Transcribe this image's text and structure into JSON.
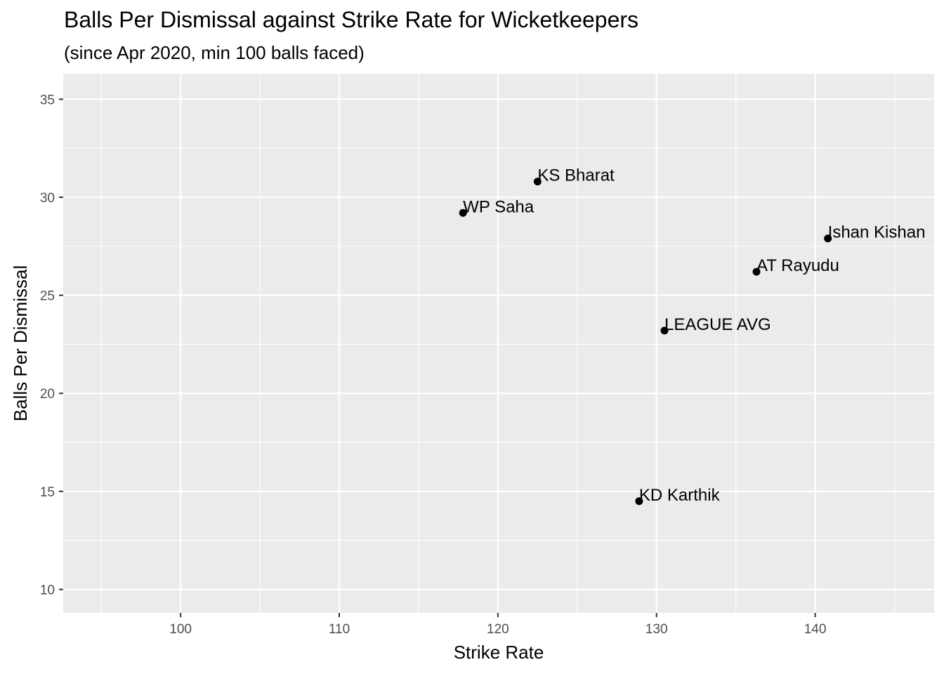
{
  "chart_data": {
    "type": "scatter",
    "title": "Balls Per Dismissal against Strike Rate for Wicketkeepers",
    "subtitle": "(since Apr 2020, min 100 balls faced)",
    "xlabel": "Strike Rate",
    "ylabel": "Balls Per Dismissal",
    "xlim": [
      92.6,
      147.5
    ],
    "ylim": [
      8.8,
      36.3
    ],
    "x_ticks": [
      100,
      110,
      120,
      130,
      140
    ],
    "y_ticks": [
      10,
      15,
      20,
      25,
      30,
      35
    ],
    "x_tick_labels": [
      "100",
      "110",
      "120",
      "130",
      "140"
    ],
    "y_tick_labels": [
      "10",
      "15",
      "20",
      "25",
      "30",
      "35"
    ],
    "grid": true,
    "points": [
      {
        "label": "KS Bharat",
        "x": 122.5,
        "y": 30.8
      },
      {
        "label": "WP Saha",
        "x": 117.8,
        "y": 29.2
      },
      {
        "label": "Ishan Kishan",
        "x": 140.8,
        "y": 27.9
      },
      {
        "label": "AT Rayudu",
        "x": 136.3,
        "y": 26.2
      },
      {
        "label": "LEAGUE AVG",
        "x": 130.5,
        "y": 23.2
      },
      {
        "label": "KD Karthik",
        "x": 128.9,
        "y": 14.5
      }
    ]
  }
}
